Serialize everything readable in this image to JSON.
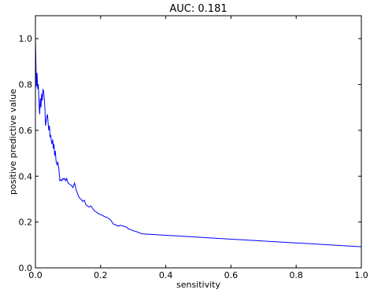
{
  "chart_data": {
    "type": "line",
    "title": "AUC: 0.181",
    "xlabel": "sensitivity",
    "ylabel": "positive predictive value",
    "xlim": [
      0.0,
      1.0
    ],
    "ylim": [
      0.0,
      1.1
    ],
    "xticks": [
      "0.0",
      "0.2",
      "0.4",
      "0.6",
      "0.8",
      "1.0"
    ],
    "yticks": [
      "0.0",
      "0.2",
      "0.4",
      "0.6",
      "0.8",
      "1.0"
    ],
    "grid": false,
    "legend": "none",
    "color": "#0000ff",
    "series": [
      {
        "x": [
          0.0,
          0.003,
          0.005,
          0.007,
          0.009,
          0.011,
          0.013,
          0.015,
          0.017,
          0.019,
          0.021,
          0.023,
          0.025,
          0.027,
          0.029,
          0.031,
          0.033,
          0.035,
          0.037,
          0.039,
          0.041,
          0.043,
          0.045,
          0.047,
          0.049,
          0.051,
          0.053,
          0.055,
          0.057,
          0.059,
          0.061,
          0.063,
          0.066,
          0.069,
          0.072,
          0.075,
          0.078,
          0.081,
          0.084,
          0.087,
          0.09,
          0.093,
          0.096,
          0.1,
          0.105,
          0.11,
          0.115,
          0.12,
          0.125,
          0.13,
          0.135,
          0.14,
          0.145,
          0.15,
          0.155,
          0.16,
          0.165,
          0.17,
          0.175,
          0.18,
          0.185,
          0.19,
          0.195,
          0.2,
          0.205,
          0.21,
          0.215,
          0.22,
          0.225,
          0.23,
          0.235,
          0.24,
          0.245,
          0.25,
          0.255,
          0.26,
          0.265,
          0.27,
          0.275,
          0.28,
          0.285,
          0.29,
          0.295,
          0.3,
          0.305,
          0.31,
          0.315,
          0.32,
          0.325,
          0.33,
          1.0
        ],
        "y": [
          1.0,
          0.79,
          0.85,
          0.78,
          0.8,
          0.72,
          0.67,
          0.74,
          0.7,
          0.76,
          0.73,
          0.78,
          0.77,
          0.74,
          0.7,
          0.62,
          0.64,
          0.66,
          0.67,
          0.63,
          0.6,
          0.62,
          0.57,
          0.58,
          0.55,
          0.54,
          0.56,
          0.52,
          0.54,
          0.49,
          0.51,
          0.47,
          0.45,
          0.46,
          0.43,
          0.38,
          0.385,
          0.38,
          0.39,
          0.385,
          0.39,
          0.38,
          0.39,
          0.37,
          0.365,
          0.36,
          0.35,
          0.37,
          0.34,
          0.32,
          0.305,
          0.3,
          0.29,
          0.295,
          0.275,
          0.27,
          0.265,
          0.27,
          0.26,
          0.25,
          0.245,
          0.24,
          0.235,
          0.232,
          0.23,
          0.225,
          0.222,
          0.22,
          0.215,
          0.21,
          0.2,
          0.19,
          0.188,
          0.185,
          0.182,
          0.186,
          0.184,
          0.182,
          0.18,
          0.178,
          0.17,
          0.168,
          0.165,
          0.162,
          0.16,
          0.158,
          0.155,
          0.152,
          0.15,
          0.148,
          0.092
        ]
      }
    ]
  }
}
